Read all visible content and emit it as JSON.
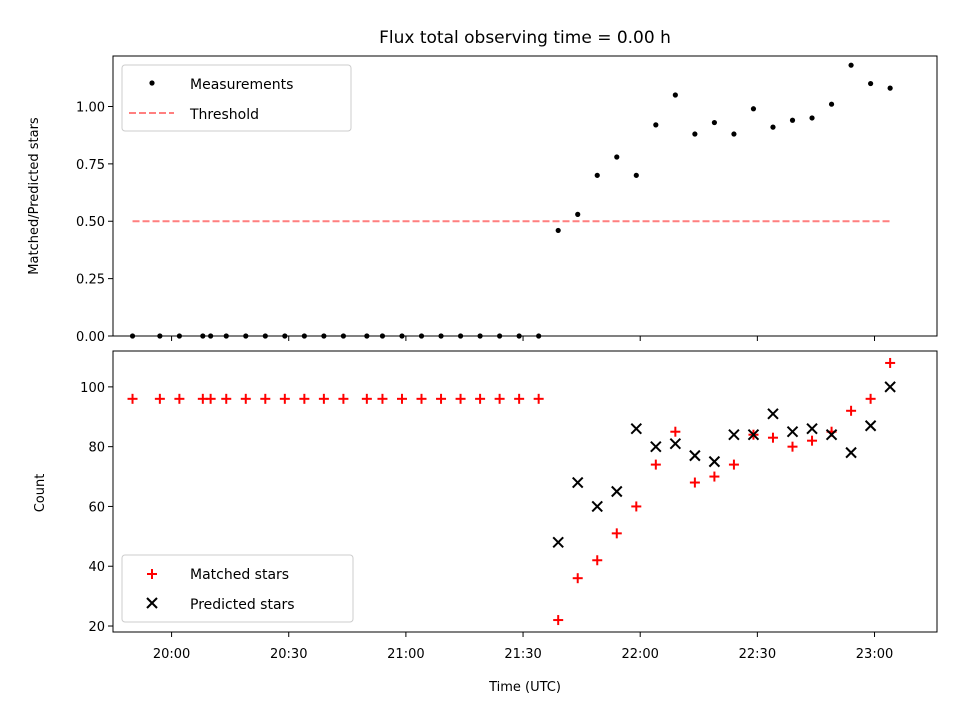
{
  "chart_data": [
    {
      "type": "scatter",
      "title": "Flux total observing time = 0.00 h",
      "xlabel": "",
      "ylabel": "Matched/Predicted stars",
      "xlim": [
        "19:45",
        "23:16"
      ],
      "ylim": [
        0,
        1.22
      ],
      "yticks": [
        "0.00",
        "0.25",
        "0.50",
        "0.75",
        "1.00"
      ],
      "ytick_values": [
        0,
        0.25,
        0.5,
        0.75,
        1.0
      ],
      "legend_position": "top-left",
      "series": [
        {
          "name": "Measurements",
          "marker": "dot",
          "color": "#000000",
          "x": [
            "19:50",
            "19:57",
            "20:02",
            "20:08",
            "20:10",
            "20:14",
            "20:19",
            "20:24",
            "20:29",
            "20:34",
            "20:39",
            "20:44",
            "20:50",
            "20:54",
            "20:59",
            "21:04",
            "21:09",
            "21:14",
            "21:19",
            "21:24",
            "21:29",
            "21:34",
            "21:39",
            "21:44",
            "21:49",
            "21:54",
            "21:59",
            "22:04",
            "22:09",
            "22:14",
            "22:19",
            "22:24",
            "22:29",
            "22:34",
            "22:39",
            "22:44",
            "22:49",
            "22:54",
            "22:59",
            "23:04"
          ],
          "y": [
            0,
            0,
            0,
            0,
            0,
            0,
            0,
            0,
            0,
            0,
            0,
            0,
            0,
            0,
            0,
            0,
            0,
            0,
            0,
            0,
            0,
            0,
            0.46,
            0.53,
            0.7,
            0.78,
            0.7,
            0.92,
            1.05,
            0.88,
            0.93,
            0.88,
            0.99,
            0.91,
            0.94,
            0.95,
            1.01,
            1.18,
            1.1,
            1.08
          ]
        },
        {
          "name": "Threshold",
          "marker": "dashed-line",
          "color": "#ff7f7f",
          "x": [
            "19:50",
            "23:04"
          ],
          "y": [
            0.5,
            0.5
          ]
        }
      ]
    },
    {
      "type": "scatter",
      "title": "",
      "xlabel": "Time (UTC)",
      "ylabel": "Count",
      "xlim": [
        "19:45",
        "23:16"
      ],
      "ylim": [
        18,
        112
      ],
      "xticks": [
        "20:00",
        "20:30",
        "21:00",
        "21:30",
        "22:00",
        "22:30",
        "23:00"
      ],
      "yticks": [
        "20",
        "40",
        "60",
        "80",
        "100"
      ],
      "ytick_values": [
        20,
        40,
        60,
        80,
        100
      ],
      "legend_position": "bottom-left",
      "series": [
        {
          "name": "Matched stars",
          "marker": "plus",
          "color": "#ff0000",
          "x": [
            "19:50",
            "19:57",
            "20:02",
            "20:08",
            "20:10",
            "20:14",
            "20:19",
            "20:24",
            "20:29",
            "20:34",
            "20:39",
            "20:44",
            "20:50",
            "20:54",
            "20:59",
            "21:04",
            "21:09",
            "21:14",
            "21:19",
            "21:24",
            "21:29",
            "21:34",
            "21:39",
            "21:44",
            "21:49",
            "21:54",
            "21:59",
            "22:04",
            "22:09",
            "22:14",
            "22:19",
            "22:24",
            "22:29",
            "22:34",
            "22:39",
            "22:44",
            "22:49",
            "22:54",
            "22:59",
            "23:04"
          ],
          "y": [
            96,
            96,
            96,
            96,
            96,
            96,
            96,
            96,
            96,
            96,
            96,
            96,
            96,
            96,
            96,
            96,
            96,
            96,
            96,
            96,
            96,
            96,
            22,
            36,
            42,
            51,
            60,
            74,
            85,
            68,
            70,
            74,
            84,
            83,
            80,
            82,
            85,
            92,
            96,
            108
          ]
        },
        {
          "name": "Predicted stars",
          "marker": "x",
          "color": "#000000",
          "x": [
            "21:39",
            "21:44",
            "21:49",
            "21:54",
            "21:59",
            "22:04",
            "22:09",
            "22:14",
            "22:19",
            "22:24",
            "22:29",
            "22:34",
            "22:39",
            "22:44",
            "22:49",
            "22:54",
            "22:59",
            "23:04"
          ],
          "y": [
            48,
            68,
            60,
            65,
            86,
            80,
            81,
            77,
            75,
            84,
            84,
            91,
            85,
            86,
            84,
            78,
            87,
            100
          ]
        }
      ]
    }
  ]
}
